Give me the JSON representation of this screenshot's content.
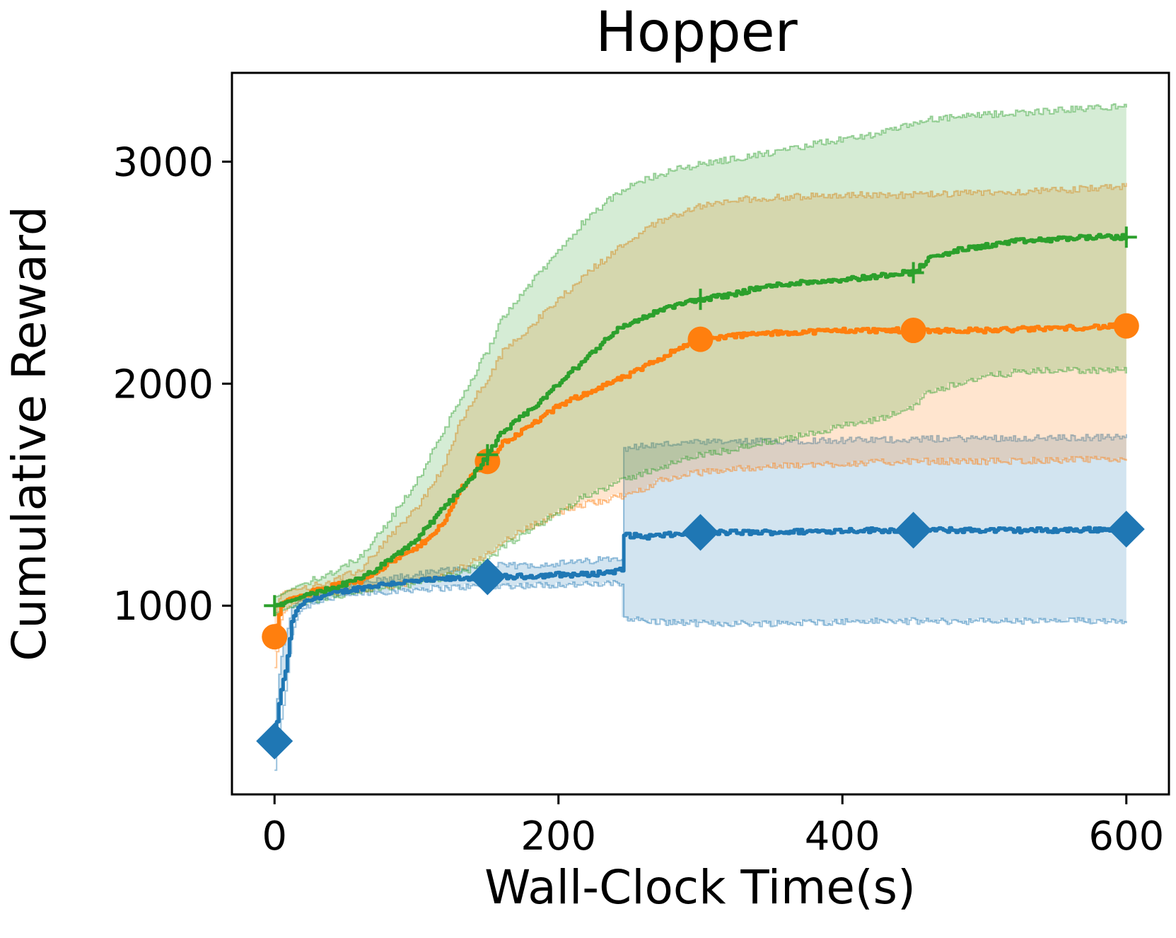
{
  "chart_data": {
    "type": "line",
    "title": "Hopper",
    "xlabel": "Wall-Clock Time(s)",
    "ylabel": "Cumulative Reward",
    "xlim": [
      -30,
      630
    ],
    "ylim": [
      150,
      3400
    ],
    "xticks": [
      0,
      200,
      400,
      600
    ],
    "yticks": [
      1000,
      2000,
      3000
    ],
    "grid": false,
    "legend": "none",
    "series": [
      {
        "color": "#1f77b4",
        "marker": "diamond",
        "markers_x": [
          0,
          150,
          300,
          450,
          600
        ],
        "x": [
          0,
          3,
          5,
          8,
          12,
          16,
          20,
          30,
          45,
          60,
          80,
          100,
          120,
          150,
          170,
          200,
          220,
          245,
          246,
          260,
          280,
          300,
          340,
          380,
          410,
          450,
          500,
          550,
          600
        ],
        "y": [
          390,
          560,
          640,
          720,
          930,
          990,
          1010,
          1040,
          1060,
          1080,
          1100,
          1110,
          1120,
          1130,
          1130,
          1140,
          1140,
          1160,
          1320,
          1310,
          1320,
          1330,
          1330,
          1335,
          1340,
          1340,
          1340,
          1340,
          1345
        ],
        "lower": [
          260,
          420,
          510,
          640,
          870,
          960,
          990,
          1020,
          1040,
          1055,
          1065,
          1075,
          1080,
          1090,
          1090,
          1095,
          1095,
          1100,
          950,
          930,
          925,
          920,
          920,
          925,
          930,
          930,
          930,
          930,
          935
        ],
        "upper": [
          470,
          690,
          800,
          870,
          990,
          1020,
          1030,
          1060,
          1080,
          1100,
          1120,
          1140,
          1160,
          1180,
          1180,
          1190,
          1200,
          1220,
          1710,
          1720,
          1730,
          1735,
          1740,
          1745,
          1745,
          1750,
          1755,
          1755,
          1760
        ]
      },
      {
        "color": "#ff7f0e",
        "marker": "circle",
        "markers_x": [
          0,
          150,
          300,
          450,
          600
        ],
        "x": [
          0,
          3,
          5,
          10,
          20,
          40,
          60,
          80,
          100,
          120,
          130,
          140,
          150,
          160,
          175,
          200,
          220,
          250,
          270,
          290,
          300,
          330,
          360,
          400,
          450,
          500,
          550,
          600
        ],
        "y": [
          860,
          960,
          1010,
          1030,
          1050,
          1090,
          1110,
          1190,
          1260,
          1380,
          1520,
          1600,
          1650,
          1730,
          1790,
          1900,
          1960,
          2040,
          2110,
          2180,
          2200,
          2220,
          2230,
          2240,
          2240,
          2240,
          2250,
          2260
        ],
        "lower": [
          720,
          860,
          960,
          1000,
          1030,
          1060,
          1070,
          1090,
          1110,
          1130,
          1170,
          1200,
          1230,
          1290,
          1340,
          1420,
          1460,
          1500,
          1560,
          1590,
          1600,
          1620,
          1630,
          1640,
          1650,
          1650,
          1655,
          1660
        ],
        "upper": [
          960,
          1030,
          1060,
          1070,
          1080,
          1110,
          1160,
          1310,
          1440,
          1640,
          1820,
          1930,
          2020,
          2140,
          2230,
          2380,
          2500,
          2650,
          2730,
          2780,
          2800,
          2830,
          2840,
          2850,
          2850,
          2860,
          2870,
          2890
        ]
      },
      {
        "color": "#2ca02c",
        "marker": "plus",
        "markers_x": [
          0,
          150,
          300,
          450,
          600
        ],
        "x": [
          0,
          5,
          10,
          20,
          40,
          60,
          80,
          100,
          120,
          140,
          150,
          160,
          180,
          200,
          220,
          240,
          260,
          280,
          300,
          320,
          340,
          360,
          380,
          400,
          420,
          440,
          450,
          460,
          480,
          500,
          520,
          550,
          570,
          600
        ],
        "y": [
          1000,
          1010,
          1020,
          1040,
          1080,
          1120,
          1200,
          1300,
          1450,
          1590,
          1680,
          1780,
          1880,
          2000,
          2120,
          2240,
          2300,
          2350,
          2380,
          2400,
          2430,
          2450,
          2460,
          2470,
          2480,
          2500,
          2500,
          2560,
          2600,
          2620,
          2640,
          2650,
          2660,
          2660
        ],
        "lower": [
          960,
          980,
          990,
          1010,
          1040,
          1060,
          1080,
          1100,
          1130,
          1170,
          1200,
          1260,
          1340,
          1420,
          1500,
          1550,
          1600,
          1640,
          1680,
          1700,
          1730,
          1750,
          1780,
          1810,
          1830,
          1870,
          1900,
          1960,
          2000,
          2030,
          2050,
          2060,
          2060,
          2060
        ],
        "upper": [
          1040,
          1050,
          1070,
          1100,
          1150,
          1220,
          1380,
          1560,
          1800,
          2040,
          2150,
          2300,
          2450,
          2600,
          2750,
          2850,
          2920,
          2960,
          2990,
          3010,
          3030,
          3050,
          3080,
          3100,
          3120,
          3150,
          3170,
          3190,
          3200,
          3210,
          3220,
          3230,
          3240,
          3250
        ]
      }
    ]
  }
}
